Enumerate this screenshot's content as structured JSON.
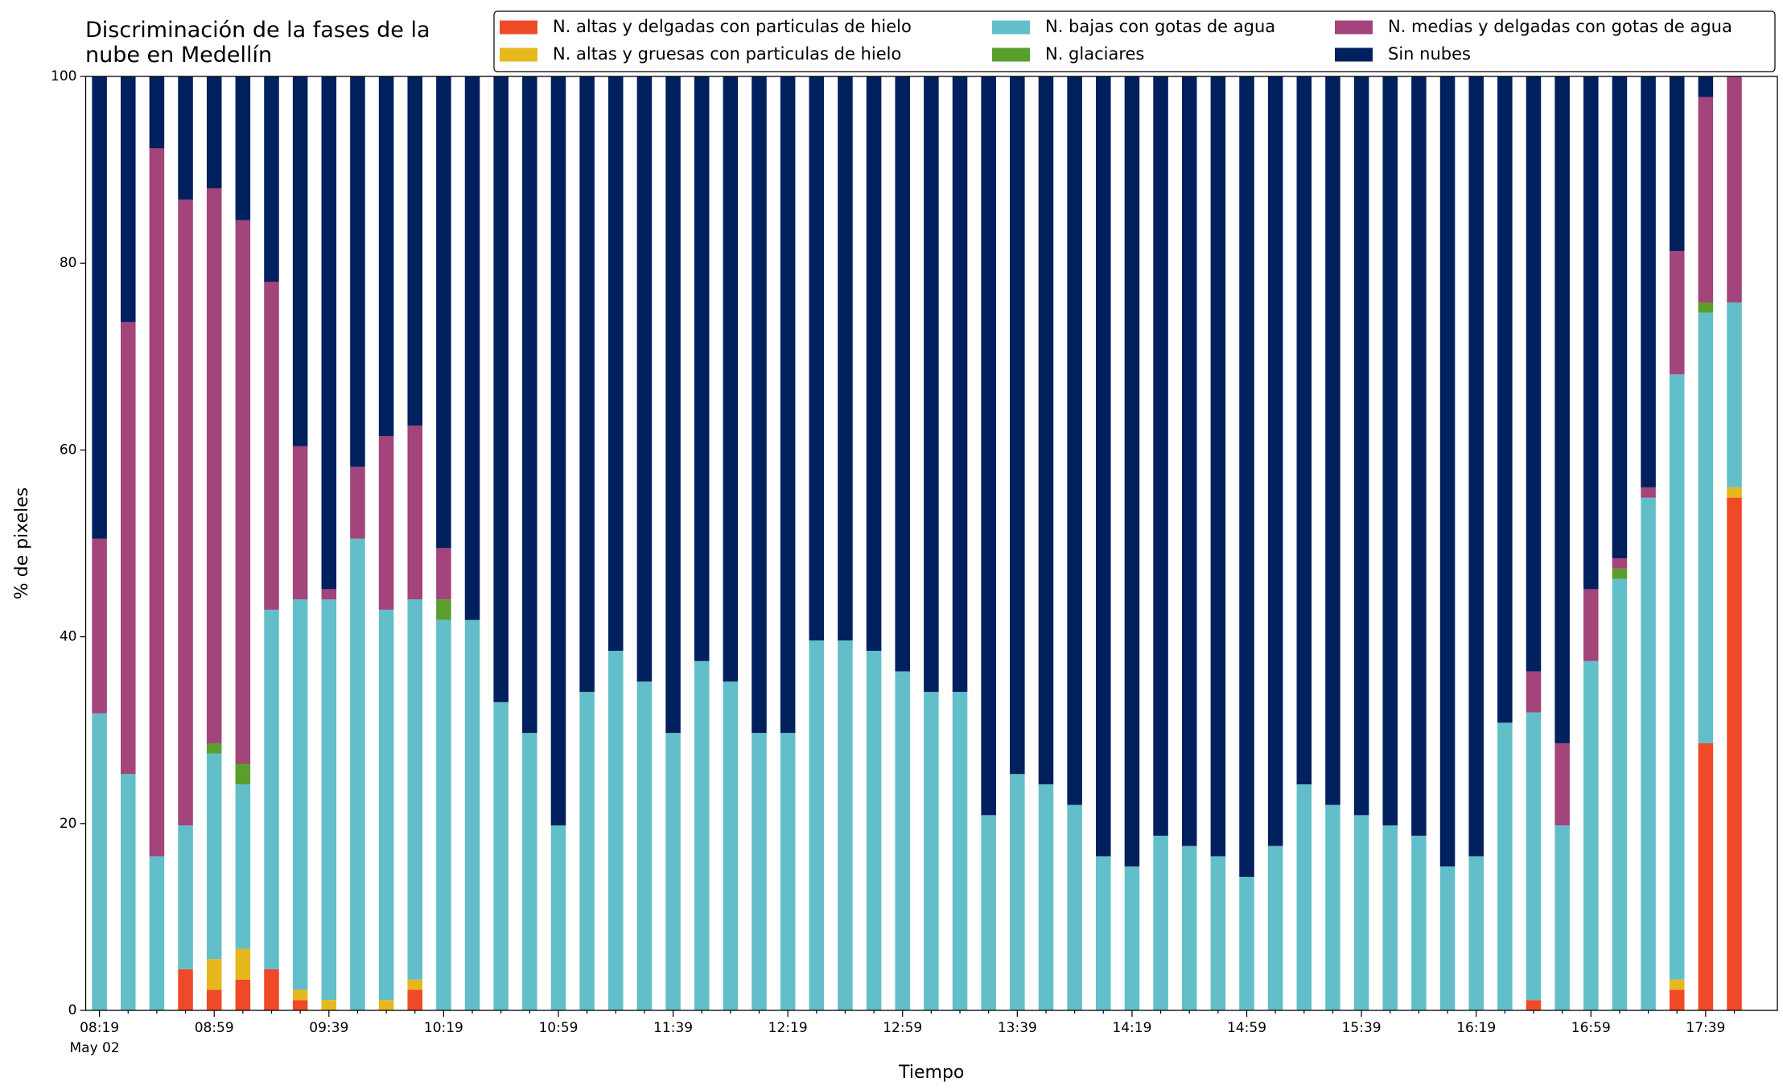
{
  "chart_data": {
    "type": "stacked_bar",
    "title": "Discriminación de la fases de la\nnube en Medellín",
    "x_label": "Tiempo",
    "y_label": "% de pixeles",
    "date_label": "May 02",
    "categories": [
      "08:19",
      null,
      null,
      null,
      "08:59",
      null,
      null,
      null,
      "09:39",
      null,
      null,
      null,
      "10:19",
      null,
      null,
      null,
      "10:59",
      null,
      null,
      null,
      "11:39",
      null,
      null,
      null,
      "12:19",
      null,
      null,
      null,
      "12:59",
      null,
      null,
      null,
      "13:39",
      null,
      null,
      null,
      "14:19",
      null,
      null,
      null,
      "14:59",
      null,
      null,
      null,
      "15:39",
      null,
      null,
      null,
      "16:19",
      null,
      null,
      null,
      "16:59",
      null,
      null,
      null,
      "17:39",
      null
    ],
    "ylim": [
      0,
      100
    ],
    "yticks": [
      0,
      20,
      40,
      60,
      80,
      100
    ],
    "legend": "upper right",
    "series": [
      {
        "name": "N. altas y delgadas con particulas de hielo",
        "color": "#ef4a28",
        "values": [
          0,
          0,
          0,
          4.4,
          2.2,
          3.3,
          4.4,
          1.1,
          0,
          0,
          0,
          2.2,
          0,
          0,
          0,
          0,
          0,
          0,
          0,
          0,
          0,
          0,
          0,
          0,
          0,
          0,
          0,
          0,
          0,
          0,
          0,
          0,
          0,
          0,
          0,
          0,
          0,
          0,
          0,
          0,
          0,
          0,
          0,
          0,
          0,
          0,
          0,
          0,
          0,
          0,
          1.1,
          0,
          0,
          0,
          0,
          2.2,
          28.6,
          54.9
        ]
      },
      {
        "name": "N. altas y gruesas con particulas de hielo",
        "color": "#e6b81e",
        "values": [
          0,
          0,
          0,
          0,
          3.3,
          3.3,
          0,
          1.1,
          1.1,
          0,
          1.1,
          1.1,
          0,
          0,
          0,
          0,
          0,
          0,
          0,
          0,
          0,
          0,
          0,
          0,
          0,
          0,
          0,
          0,
          0,
          0,
          0,
          0,
          0,
          0,
          0,
          0,
          0,
          0,
          0,
          0,
          0,
          0,
          0,
          0,
          0,
          0,
          0,
          0,
          0,
          0,
          0,
          0,
          0,
          0,
          0,
          1.1,
          0,
          1.1
        ]
      },
      {
        "name": "N. bajas con gotas de agua",
        "color": "#62bfca",
        "values": [
          31.8,
          25.3,
          16.5,
          15.4,
          22.0,
          17.6,
          38.5,
          41.8,
          42.9,
          50.5,
          41.8,
          40.7,
          41.8,
          41.8,
          33.0,
          29.7,
          19.8,
          34.1,
          38.5,
          35.2,
          29.7,
          37.4,
          35.2,
          29.7,
          29.7,
          39.6,
          39.6,
          38.5,
          36.3,
          34.1,
          34.1,
          20.9,
          25.3,
          24.2,
          22.0,
          16.5,
          15.4,
          18.7,
          17.6,
          16.5,
          14.3,
          17.6,
          24.2,
          22.0,
          20.9,
          19.8,
          18.7,
          15.4,
          16.5,
          30.8,
          30.8,
          19.8,
          37.4,
          46.2,
          54.9,
          64.8,
          46.1,
          19.8
        ]
      },
      {
        "name": "N. glaciares",
        "color": "#5a9e2e",
        "values": [
          0,
          0,
          0,
          0,
          1.1,
          2.2,
          0,
          0,
          0,
          0,
          0,
          0,
          2.2,
          0,
          0,
          0,
          0,
          0,
          0,
          0,
          0,
          0,
          0,
          0,
          0,
          0,
          0,
          0,
          0,
          0,
          0,
          0,
          0,
          0,
          0,
          0,
          0,
          0,
          0,
          0,
          0,
          0,
          0,
          0,
          0,
          0,
          0,
          0,
          0,
          0,
          0,
          0,
          0,
          1.1,
          0,
          0,
          1.1,
          0
        ]
      },
      {
        "name": "N. medias y delgadas con gotas de agua",
        "color": "#a3447a",
        "values": [
          18.7,
          48.4,
          75.8,
          67.0,
          59.4,
          58.2,
          35.1,
          16.4,
          1.1,
          7.7,
          18.6,
          18.6,
          5.5,
          0,
          0,
          0,
          0,
          0,
          0,
          0,
          0,
          0,
          0,
          0,
          0,
          0,
          0,
          0,
          0,
          0,
          0,
          0,
          0,
          0,
          0,
          0,
          0,
          0,
          0,
          0,
          0,
          0,
          0,
          0,
          0,
          0,
          0,
          0,
          0,
          0,
          4.4,
          8.8,
          7.7,
          1.1,
          1.1,
          13.2,
          22.0,
          24.2
        ]
      },
      {
        "name": "Sin nubes",
        "color": "#00205e",
        "values": [
          49.5,
          26.3,
          7.7,
          13.2,
          12.0,
          15.4,
          22.0,
          39.6,
          54.9,
          41.8,
          38.5,
          37.4,
          50.5,
          58.2,
          67.0,
          70.3,
          80.2,
          65.9,
          61.5,
          64.8,
          70.3,
          62.6,
          64.8,
          70.3,
          70.3,
          60.4,
          60.4,
          61.5,
          63.7,
          65.9,
          65.9,
          79.1,
          74.7,
          75.8,
          78.0,
          83.5,
          84.6,
          81.3,
          82.4,
          83.5,
          85.7,
          82.4,
          75.8,
          78.0,
          79.1,
          80.2,
          81.3,
          84.6,
          83.5,
          69.2,
          63.7,
          71.4,
          54.9,
          51.6,
          44.0,
          18.7,
          2.2,
          0
        ]
      }
    ]
  }
}
